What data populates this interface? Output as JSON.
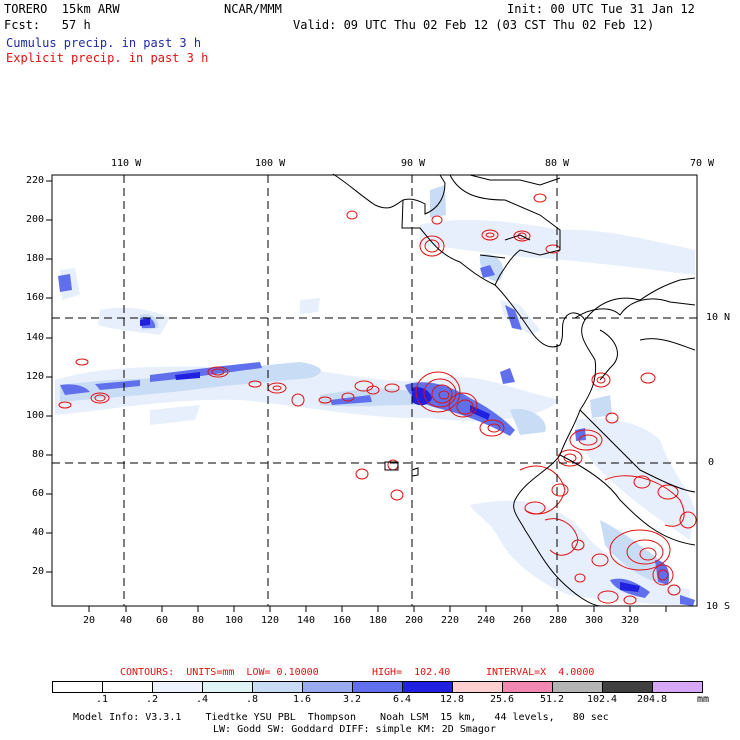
{
  "header": {
    "model": "TORERO  15km ARW",
    "org": "NCAR/MMM",
    "init": "Init: 00 UTC Tue 31 Jan 12",
    "fcst": "Fcst:   57 h",
    "valid": "Valid: 09 UTC Thu 02 Feb 12 (03 CST Thu 02 Feb 12)"
  },
  "legend": {
    "cumulus": "Cumulus precip. in past 3 h",
    "explicit": "Explicit precip. in past 3 h",
    "cumulus_color": "#1f2aa8",
    "explicit_color": "#e01010"
  },
  "map": {
    "lon_labels": [
      "110 W",
      "100 W",
      "90 W",
      "80 W",
      "70 W"
    ],
    "lat_labels": [
      "10 N",
      "0",
      "10 S"
    ],
    "y_ticks": [
      "220",
      "200",
      "180",
      "160",
      "140",
      "120",
      "100",
      "80",
      "60",
      "40",
      "20"
    ],
    "x_ticks": [
      "20",
      "40",
      "60",
      "80",
      "100",
      "120",
      "140",
      "160",
      "180",
      "200",
      "220",
      "240",
      "260",
      "280",
      "300",
      "320"
    ]
  },
  "contours_line": {
    "label": "CONTOURS:  UNITS=mm  LOW= 0.10000",
    "high": "HIGH=  102.40",
    "interval": "INTERVAL=X  4.0000"
  },
  "colorbar": {
    "labels": [
      ".1",
      ".2",
      ".4",
      ".8",
      "1.6",
      "3.2",
      "6.4",
      "12.8",
      "25.6",
      "51.2",
      "102.4",
      "204.8"
    ],
    "unit": "mm",
    "colors": [
      "#ffffff",
      "#ffffff",
      "#eef3ff",
      "#dff5f5",
      "#c8dcf5",
      "#9aaaf0",
      "#6070ec",
      "#2020e0",
      "#ffd0d0",
      "#f088b0",
      "#b4b4b4",
      "#404040",
      "#d8a8f8"
    ]
  },
  "footer": {
    "line1": "Model Info: V3.3.1    Tiedtke YSU PBL  Thompson    Noah LSM  15 km,   44 levels,   80 sec",
    "line2": "LW: Godd SW: Goddard DIFF: simple KM: 2D Smagor"
  }
}
